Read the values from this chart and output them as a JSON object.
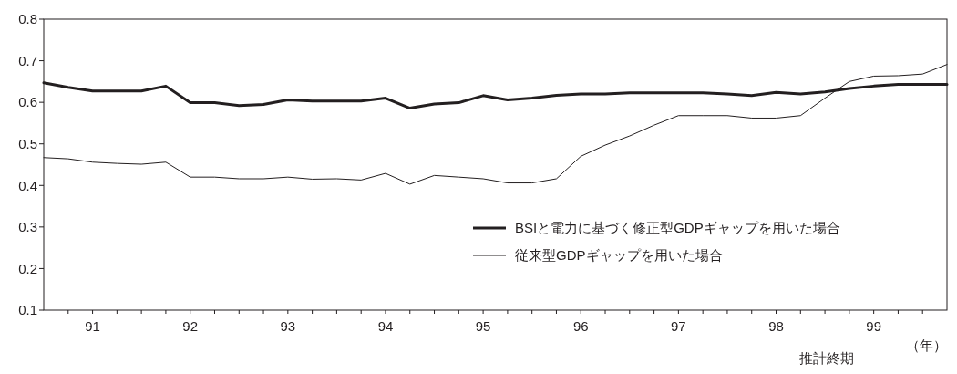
{
  "chart_data": {
    "type": "line",
    "xlabel": "推計終期",
    "annotations": [
      "（年）"
    ],
    "x": [
      90.5,
      90.75,
      91,
      91.25,
      91.5,
      91.75,
      92,
      92.25,
      92.5,
      92.75,
      93,
      93.25,
      93.5,
      93.75,
      94,
      94.25,
      94.5,
      94.75,
      95,
      95.25,
      95.5,
      95.75,
      96,
      96.25,
      96.5,
      96.75,
      97,
      97.25,
      97.5,
      97.75,
      98,
      98.25,
      98.5,
      98.75,
      99,
      99.25,
      99.5,
      99.75
    ],
    "series": [
      {
        "name": "BSIと電力に基づく修正型GDPギャップを用いた場合",
        "color": "#231f20",
        "values": [
          0.647,
          0.636,
          0.627,
          0.627,
          0.627,
          0.639,
          0.599,
          0.599,
          0.592,
          0.595,
          0.606,
          0.603,
          0.603,
          0.603,
          0.61,
          0.586,
          0.596,
          0.599,
          0.616,
          0.606,
          0.61,
          0.617,
          0.62,
          0.62,
          0.623,
          0.623,
          0.623,
          0.623,
          0.62,
          0.616,
          0.624,
          0.62,
          0.625,
          0.633,
          0.639,
          0.643,
          0.643,
          0.643
        ]
      },
      {
        "name": "従来型GDPギャップを用いた場合",
        "color": "#231f20",
        "values": [
          0.467,
          0.464,
          0.456,
          0.453,
          0.451,
          0.456,
          0.42,
          0.42,
          0.416,
          0.416,
          0.42,
          0.415,
          0.416,
          0.413,
          0.429,
          0.403,
          0.424,
          0.42,
          0.416,
          0.406,
          0.406,
          0.416,
          0.47,
          0.497,
          0.519,
          0.545,
          0.568,
          0.568,
          0.568,
          0.562,
          0.562,
          0.568,
          0.61,
          0.65,
          0.663,
          0.664,
          0.668,
          0.691
        ]
      }
    ],
    "xlim": [
      90.5,
      99.75
    ],
    "xticks": [
      {
        "value": 90.75,
        "label": null
      },
      91,
      {
        "value": 91.25,
        "label": null
      },
      {
        "value": 91.5,
        "label": null
      },
      {
        "value": 91.75,
        "label": null
      },
      92,
      {
        "value": 92.25,
        "label": null
      },
      {
        "value": 92.5,
        "label": null
      },
      {
        "value": 92.75,
        "label": null
      },
      93,
      {
        "value": 93.25,
        "label": null
      },
      {
        "value": 93.5,
        "label": null
      },
      {
        "value": 93.75,
        "label": null
      },
      94,
      {
        "value": 94.25,
        "label": null
      },
      {
        "value": 94.5,
        "label": null
      },
      {
        "value": 94.75,
        "label": null
      },
      95,
      {
        "value": 95.25,
        "label": null
      },
      {
        "value": 95.5,
        "label": null
      },
      {
        "value": 95.75,
        "label": null
      },
      96,
      {
        "value": 96.25,
        "label": null
      },
      {
        "value": 96.5,
        "label": null
      },
      {
        "value": 96.75,
        "label": null
      },
      97,
      {
        "value": 97.25,
        "label": null
      },
      {
        "value": 97.5,
        "label": null
      },
      {
        "value": 97.75,
        "label": null
      },
      98,
      {
        "value": 98.25,
        "label": null
      },
      {
        "value": 98.5,
        "label": null
      },
      {
        "value": 98.75,
        "label": null
      },
      99,
      {
        "value": 99.25,
        "label": null
      },
      {
        "value": 99.5,
        "label": null
      }
    ],
    "ylim": [
      0.1,
      0.8
    ],
    "yticks": [
      0.1,
      0.2,
      0.3,
      0.4,
      0.5,
      0.6,
      0.7,
      0.8
    ],
    "legend": "bottom right",
    "grid": false,
    "marker": "none",
    "line_style": "solid"
  }
}
